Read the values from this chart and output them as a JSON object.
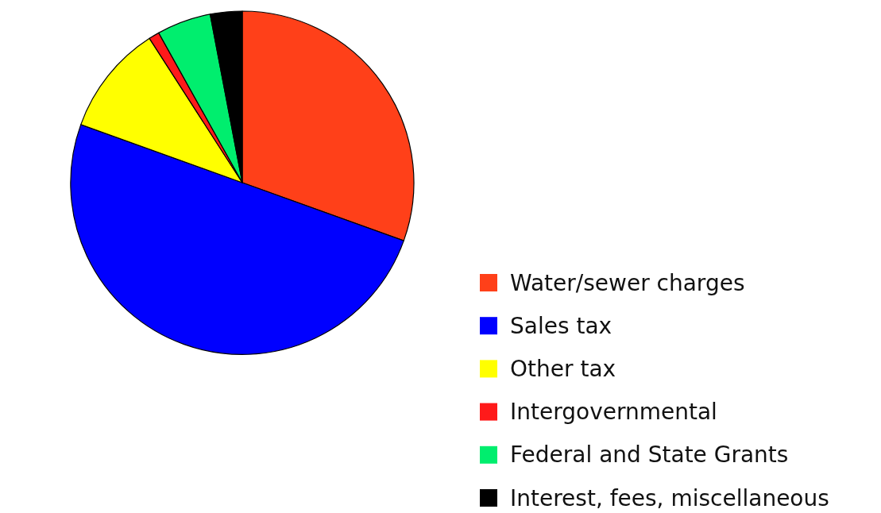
{
  "chart_data": {
    "type": "pie",
    "categories": [
      "Water/sewer charges",
      "Sales tax",
      "Other tax",
      "Intergovernmental",
      "Federal and State Grants",
      "Interest, fees, miscellaneous"
    ],
    "values": [
      30.5,
      50,
      10.4,
      1,
      5.1,
      3
    ],
    "colors": [
      "#ff4019",
      "#0000ff",
      "#ffff00",
      "#ff1a1a",
      "#00ee6e",
      "#000000"
    ],
    "legend": "bottom right"
  }
}
